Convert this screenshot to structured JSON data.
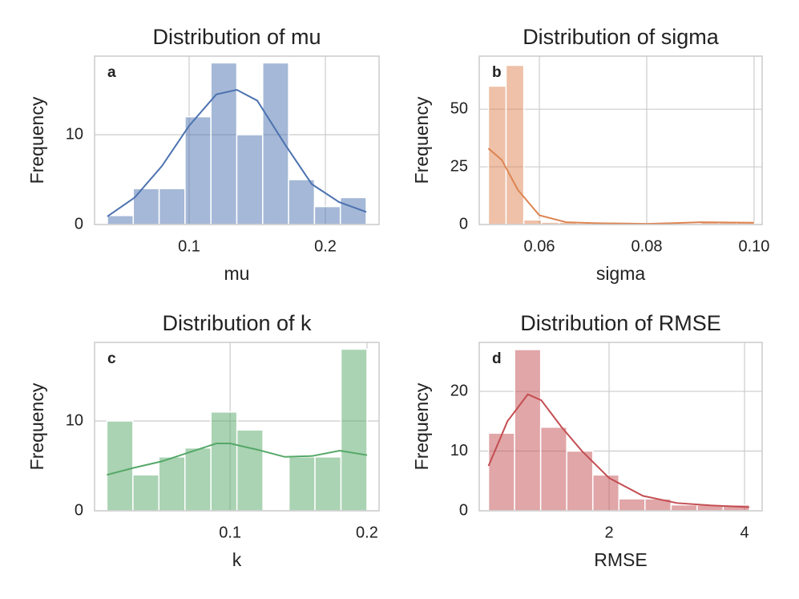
{
  "chart_data": [
    {
      "type": "histogram",
      "title": "Distribution of mu",
      "xlabel": "mu",
      "ylabel": "Frequency",
      "annotation": "a",
      "color": "#4c72b0",
      "bins": [
        0.04,
        0.059,
        0.078,
        0.097,
        0.116,
        0.135,
        0.154,
        0.173,
        0.192,
        0.211,
        0.23
      ],
      "values": [
        1,
        4,
        4,
        12,
        18,
        10,
        18,
        5,
        2,
        3
      ],
      "kde": {
        "x": [
          0.04,
          0.06,
          0.08,
          0.1,
          0.12,
          0.135,
          0.15,
          0.17,
          0.19,
          0.21,
          0.23
        ],
        "y": [
          0.9,
          3,
          6.5,
          11,
          14.5,
          15,
          13.8,
          9,
          4.5,
          2.5,
          1.4
        ]
      },
      "xlim": [
        0.0306,
        0.2394
      ],
      "ylim": [
        0,
        18.75
      ],
      "xticks": [
        0.1,
        0.2
      ],
      "yticks": [
        0,
        10
      ],
      "grid": true
    },
    {
      "type": "histogram",
      "title": "Distribution of sigma",
      "xlabel": "sigma",
      "ylabel": "Frequency",
      "annotation": "b",
      "color": "#dd8452",
      "bins": [
        0.0505,
        0.0538,
        0.0571,
        0.0604,
        0.0637,
        0.067,
        0.0703,
        0.0736,
        0.0769,
        0.0802,
        0.0835,
        0.0868,
        0.0901,
        0.0934,
        0.0967,
        0.1
      ],
      "values": [
        60,
        69,
        2,
        1,
        1,
        0,
        0,
        0,
        0,
        0,
        0,
        0,
        1,
        1,
        1
      ],
      "kde": {
        "x": [
          0.0505,
          0.053,
          0.056,
          0.06,
          0.065,
          0.07,
          0.08,
          0.085,
          0.09,
          0.1
        ],
        "y": [
          33,
          28,
          15,
          4,
          1,
          0.6,
          0.3,
          0.6,
          1,
          0.8
        ]
      },
      "xlim": [
        0.0488,
        0.1015
      ],
      "ylim": [
        0,
        73
      ],
      "xticks": [
        {
          "value": 0.06,
          "label": "0.06"
        },
        {
          "value": 0.08,
          "label": "0.08"
        },
        {
          "value": 0.1,
          "label": "0.10"
        }
      ],
      "yticks": [
        0,
        25,
        50
      ],
      "grid": true
    },
    {
      "type": "histogram",
      "title": "Distribution of k",
      "xlabel": "k",
      "ylabel": "Frequency",
      "annotation": "c",
      "color": "#55a868",
      "bins": [
        0.01,
        0.029,
        0.048,
        0.067,
        0.086,
        0.105,
        0.124,
        0.143,
        0.162,
        0.181,
        0.2
      ],
      "values": [
        10,
        4,
        6,
        7,
        11,
        9,
        0,
        6,
        6,
        18
      ],
      "kde": {
        "x": [
          0.01,
          0.03,
          0.05,
          0.07,
          0.09,
          0.1,
          0.12,
          0.14,
          0.16,
          0.18,
          0.2
        ],
        "y": [
          4,
          4.8,
          5.5,
          6.5,
          7.5,
          7.5,
          6.8,
          6,
          6.1,
          6.7,
          6.2
        ]
      },
      "xlim": [
        0.001,
        0.2088
      ],
      "ylim": [
        0,
        18.75
      ],
      "xticks": [
        0.1,
        0.2
      ],
      "yticks": [
        0,
        10
      ],
      "grid": true
    },
    {
      "type": "histogram",
      "title": "Distribution of RMSE",
      "xlabel": "RMSE",
      "ylabel": "Frequency",
      "annotation": "d",
      "color": "#c44e52",
      "bins": [
        0.22,
        0.605,
        0.99,
        1.375,
        1.76,
        2.145,
        2.53,
        2.915,
        3.3,
        3.685,
        4.07
      ],
      "values": [
        13,
        27,
        14,
        10,
        6,
        2,
        2,
        1,
        1,
        1
      ],
      "kde": {
        "x": [
          0.22,
          0.5,
          0.8,
          1.0,
          1.3,
          1.6,
          2.0,
          2.5,
          3.0,
          3.5,
          4.07
        ],
        "y": [
          7.5,
          15,
          19.5,
          18.5,
          14,
          10,
          5.5,
          2.5,
          1.3,
          0.9,
          0.6
        ]
      },
      "xlim": [
        0.083,
        4.26
      ],
      "ylim": [
        0,
        28.2
      ],
      "xticks": [
        2,
        4
      ],
      "yticks": [
        0,
        10,
        20
      ],
      "grid": true
    }
  ]
}
